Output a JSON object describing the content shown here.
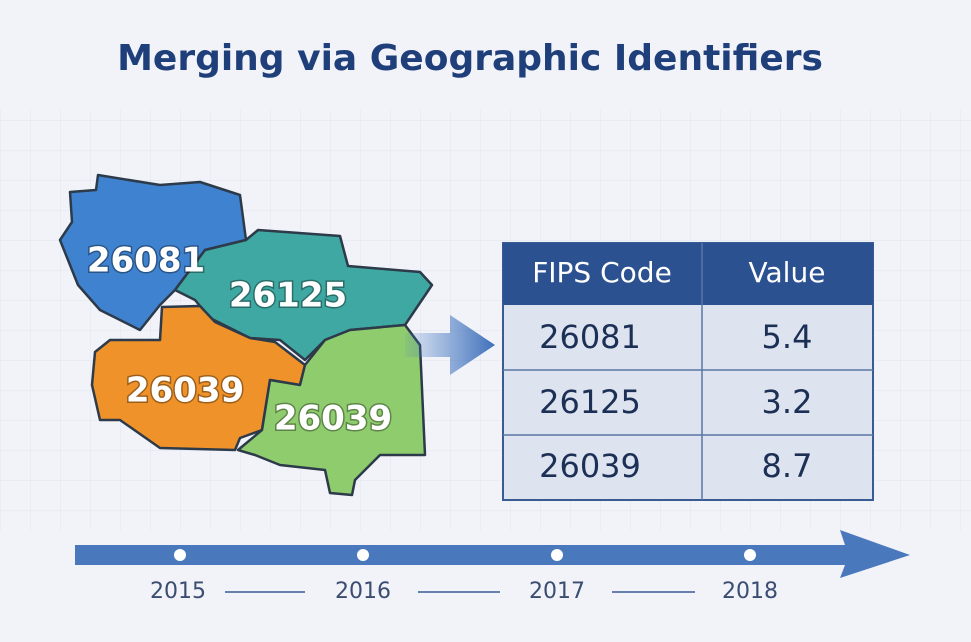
{
  "title": "Merging via Geographic Identifiers",
  "regions": [
    "26081",
    "26125",
    "26039",
    "26039"
  ],
  "table": {
    "header": [
      "FIPS Code",
      "Value"
    ],
    "rows": [
      [
        "26081",
        "5.4"
      ],
      [
        "26125",
        "3.2"
      ],
      [
        "26039",
        "8.7"
      ]
    ]
  },
  "timeline": [
    "2015",
    "2016",
    "2017",
    "2018"
  ]
}
